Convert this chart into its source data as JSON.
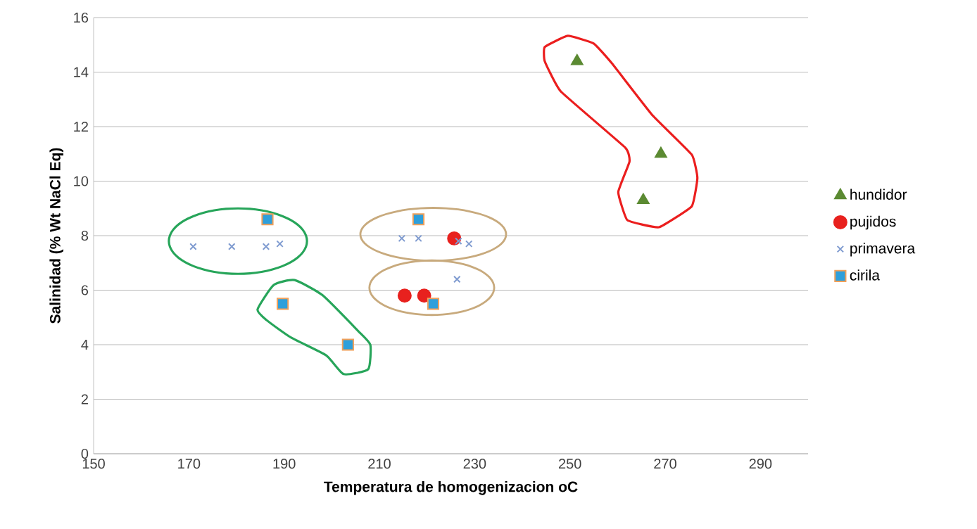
{
  "chart_data": {
    "type": "scatter",
    "xlabel": "Temperatura de homogenizacion oC",
    "ylabel": "Salinidad   (% Wt NaCl Eq)",
    "xlim": [
      150,
      300
    ],
    "xticks": [
      150,
      170,
      190,
      210,
      230,
      250,
      270,
      290
    ],
    "ylim": [
      0,
      16
    ],
    "yticks": [
      0,
      2,
      4,
      6,
      8,
      10,
      12,
      14,
      16
    ],
    "grid": "y",
    "legend": "right",
    "series": [
      {
        "name": "hundidor",
        "color": "#5b8a32",
        "marker": "triangle",
        "x": [
          251.5,
          269.1,
          265.4
        ],
        "values": [
          14.4,
          11.0,
          9.3
        ]
      },
      {
        "name": "pujidos",
        "color": "#e8211e",
        "marker": "circle",
        "x": [
          225.7,
          215.3,
          219.4
        ],
        "values": [
          7.9,
          5.8,
          5.8
        ]
      },
      {
        "name": "primavera",
        "color": "#7f9bd0",
        "marker": "cross",
        "x": [
          170.9,
          179,
          186.2,
          189.1,
          214.7,
          218.2,
          226.6,
          228.8,
          226.3
        ],
        "values": [
          7.6,
          7.6,
          7.6,
          7.7,
          7.9,
          7.9,
          7.8,
          7.7,
          6.4
        ]
      },
      {
        "name": "cirila",
        "color": "#2e9fdb",
        "marker": "square",
        "x": [
          186.5,
          218.2,
          189.7,
          221.3,
          203.4
        ],
        "values": [
          8.6,
          8.6,
          5.5,
          5.5,
          4.0
        ]
      }
    ]
  }
}
